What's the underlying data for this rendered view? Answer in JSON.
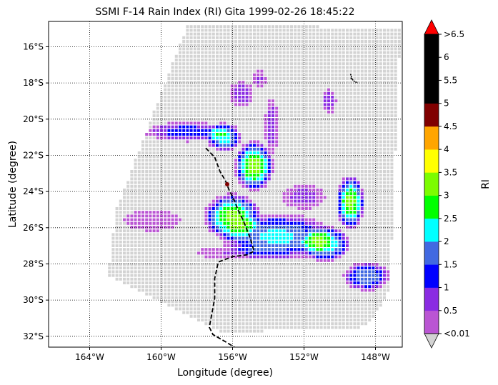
{
  "chart_data": {
    "type": "heatmap",
    "title": "SSMI F-14 Rain Index (RI) Gita 1999-02-26 18:45:22",
    "xlabel": "Longitude (degree)",
    "ylabel": "Latitude (degree)",
    "xlim": [
      -166.3,
      -146.5
    ],
    "ylim": [
      -32.6,
      -14.6
    ],
    "x_ticks": [
      -164,
      -160,
      -156,
      -152,
      -148
    ],
    "x_tick_labels": [
      "164°W",
      "160°W",
      "156°W",
      "152°W",
      "148°W"
    ],
    "y_ticks": [
      -16,
      -18,
      -20,
      -22,
      -24,
      -26,
      -28,
      -30,
      -32
    ],
    "y_tick_labels": [
      "16°S",
      "18°S",
      "20°S",
      "22°S",
      "24°S",
      "26°S",
      "28°S",
      "30°S",
      "32°S"
    ],
    "grid": true,
    "grid_style": "dotted",
    "colorbar": {
      "label": "RI",
      "boundaries": [
        0.01,
        0.5,
        1,
        1.5,
        2,
        2.5,
        3,
        3.5,
        4,
        4.5,
        5,
        5.5,
        6,
        6.5
      ],
      "tick_labels": [
        "<0.01",
        "0.5",
        "1",
        "1.5",
        "2",
        "2.5",
        "3",
        "3.5",
        "4",
        "4.5",
        "5",
        "5.5",
        "6",
        ">6.5"
      ],
      "colors": [
        "#ba55d3",
        "#8a2be2",
        "#0000ff",
        "#4169e1",
        "#00ffff",
        "#00ff00",
        "#7cfc00",
        "#ffff00",
        "#ffa500",
        "#800000",
        "#000000",
        "#000000",
        "#000000"
      ],
      "under_color": "#d3d3d3",
      "over_color": "#ff0000"
    },
    "swath": {
      "corners": [
        [
          -158.5,
          -14.7
        ],
        [
          -146.6,
          -15.0
        ],
        [
          -147.2,
          -29.5
        ],
        [
          -148.5,
          -31.5
        ],
        [
          -156.5,
          -31.8
        ],
        [
          -163.0,
          -28.6
        ],
        [
          -162.5,
          -25.0
        ]
      ],
      "background_value": 0.0
    },
    "rain_patches": [
      {
        "lon": -156.5,
        "lat": -21.0,
        "rlon": 1.0,
        "rlat": 0.8,
        "peak": 2.5
      },
      {
        "lon": -158.5,
        "lat": -20.7,
        "rlon": 2.4,
        "rlat": 0.55,
        "peak": 1.4
      },
      {
        "lon": -154.8,
        "lat": -22.6,
        "rlon": 1.1,
        "rlat": 1.4,
        "peak": 3.4
      },
      {
        "lon": -156.0,
        "lat": -25.4,
        "rlon": 1.6,
        "rlat": 1.3,
        "peak": 3.2
      },
      {
        "lon": -153.5,
        "lat": -26.5,
        "rlon": 3.2,
        "rlat": 1.3,
        "peak": 2.2
      },
      {
        "lon": -150.8,
        "lat": -26.9,
        "rlon": 1.4,
        "rlat": 1.0,
        "peak": 2.6
      },
      {
        "lon": -149.4,
        "lat": -24.6,
        "rlon": 0.8,
        "rlat": 1.5,
        "peak": 3.3
      },
      {
        "lon": -148.5,
        "lat": -28.7,
        "rlon": 1.3,
        "rlat": 0.8,
        "peak": 2.0
      },
      {
        "lon": -155.5,
        "lat": -18.6,
        "rlon": 0.7,
        "rlat": 0.7,
        "peak": 1.0
      },
      {
        "lon": -154.5,
        "lat": -17.8,
        "rlon": 0.4,
        "rlat": 0.5,
        "peak": 0.6
      },
      {
        "lon": -150.6,
        "lat": -19.0,
        "rlon": 0.4,
        "rlat": 0.7,
        "peak": 0.9
      },
      {
        "lon": -160.5,
        "lat": -25.6,
        "rlon": 1.6,
        "rlat": 0.6,
        "peak": 0.4
      },
      {
        "lon": -155.5,
        "lat": -27.4,
        "rlon": 2.6,
        "rlat": 0.4,
        "peak": 0.6
      },
      {
        "lon": -153.8,
        "lat": -20.4,
        "rlon": 0.4,
        "rlat": 1.6,
        "peak": 0.9
      },
      {
        "lon": -152.0,
        "lat": -24.3,
        "rlon": 1.2,
        "rlat": 0.7,
        "peak": 0.8
      }
    ],
    "storm_track": {
      "lon": [
        -157.5,
        -157.0,
        -156.7,
        -156.4,
        -156.2,
        -155.9,
        -155.7,
        -155.4,
        -155.2,
        -155.0,
        -154.8,
        -155.2,
        -156.0,
        -156.8,
        -157.0,
        -157.0,
        -157.3,
        -157.1,
        -156.4,
        -155.9
      ],
      "lat": [
        -21.6,
        -22.1,
        -22.9,
        -23.4,
        -23.9,
        -24.5,
        -25.0,
        -25.6,
        -26.1,
        -26.6,
        -27.3,
        -27.5,
        -27.6,
        -27.9,
        -28.8,
        -29.9,
        -31.5,
        -31.9,
        -32.3,
        -32.6
      ],
      "marker": {
        "lon": -156.3,
        "lat": -23.6,
        "color": "#800000"
      }
    },
    "small_track": {
      "lon": [
        -149.4,
        -149.3,
        -149.4,
        -149.2,
        -149.0
      ],
      "lat": [
        -17.5,
        -17.8,
        -17.7,
        -17.9,
        -18.0
      ]
    }
  }
}
